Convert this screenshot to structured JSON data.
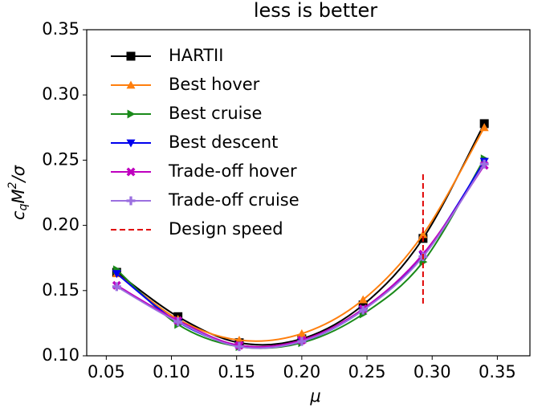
{
  "chart_data": {
    "type": "line",
    "title": "less is better",
    "xlabel": "μ",
    "ylabel": [
      "c",
      "q",
      "M",
      "2",
      "/σ"
    ],
    "x": [
      0.058,
      0.105,
      0.152,
      0.2,
      0.247,
      0.293,
      0.34
    ],
    "series": [
      {
        "name": "HARTII",
        "color": "#000000",
        "marker": "square",
        "values": [
          0.164,
          0.13,
          0.11,
          0.113,
          0.139,
          0.19,
          0.278
        ]
      },
      {
        "name": "Best hover",
        "color": "#ff7f0e",
        "marker": "triangle-up",
        "values": [
          0.163,
          0.128,
          0.112,
          0.117,
          0.143,
          0.193,
          0.275
        ]
      },
      {
        "name": "Best cruise",
        "color": "#1a8a1a",
        "marker": "triangle-right",
        "values": [
          0.166,
          0.124,
          0.107,
          0.11,
          0.132,
          0.172,
          0.251
        ]
      },
      {
        "name": "Best descent",
        "color": "#0000ee",
        "marker": "triangle-down",
        "values": [
          0.163,
          0.126,
          0.108,
          0.111,
          0.135,
          0.177,
          0.249
        ]
      },
      {
        "name": "Trade-off hover",
        "color": "#bf00bf",
        "marker": "x",
        "values": [
          0.154,
          0.127,
          0.108,
          0.112,
          0.136,
          0.178,
          0.246
        ]
      },
      {
        "name": "Trade-off cruise",
        "color": "#9b6fe0",
        "marker": "plus",
        "values": [
          0.153,
          0.126,
          0.107,
          0.111,
          0.135,
          0.176,
          0.247
        ]
      }
    ],
    "vlines": [
      {
        "name": "Design speed",
        "color": "#e00000",
        "x": 0.293,
        "ymin": 0.14,
        "ymax": 0.24
      }
    ],
    "xlim": [
      0.035,
      0.375
    ],
    "ylim": [
      0.1,
      0.35
    ],
    "xticks": [
      {
        "value": 0.05,
        "label": "0.05"
      },
      {
        "value": 0.1,
        "label": "0.10"
      },
      {
        "value": 0.15,
        "label": "0.15"
      },
      {
        "value": 0.2,
        "label": "0.20"
      },
      {
        "value": 0.25,
        "label": "0.25"
      },
      {
        "value": 0.3,
        "label": "0.30"
      },
      {
        "value": 0.35,
        "label": "0.35"
      }
    ],
    "yticks": [
      {
        "value": 0.1,
        "label": "0.10"
      },
      0.15,
      {
        "value": 0.2,
        "label": "0.20"
      },
      0.25,
      {
        "value": 0.3,
        "label": "0.30"
      },
      0.35
    ],
    "legend": "upper left",
    "grid": false
  }
}
